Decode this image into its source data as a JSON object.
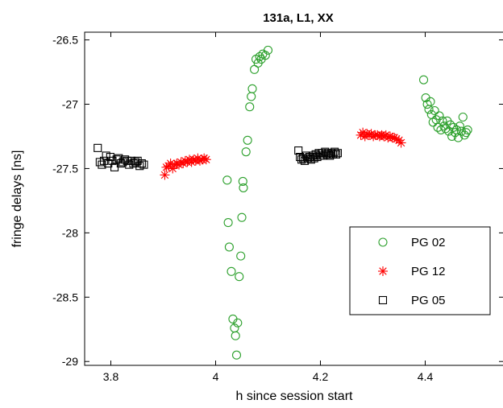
{
  "chart_data": {
    "type": "scatter",
    "title": "131a, L1, XX",
    "xlabel": "h since session start",
    "ylabel": "fringe delays [ns]",
    "xlim": [
      3.75,
      4.55
    ],
    "ylim": [
      -29.03,
      -26.44
    ],
    "xticks": [
      3.8,
      4,
      4.2,
      4.4
    ],
    "xtick_labels": [
      "3.8",
      "4",
      "4.2",
      "4.4"
    ],
    "yticks": [
      -26.5,
      -27,
      -27.5,
      -28,
      -28.5,
      -29
    ],
    "ytick_labels": [
      "-26.5",
      "-27",
      "-27.5",
      "-28",
      "-28.5",
      "-29"
    ],
    "grid": false,
    "legend_position": "lower-right",
    "series": [
      {
        "name": "PG 02",
        "marker": "circle",
        "color": "#2ca02c",
        "points": [
          [
            4.022,
            -27.59
          ],
          [
            4.024,
            -27.92
          ],
          [
            4.026,
            -28.11
          ],
          [
            4.03,
            -28.3
          ],
          [
            4.033,
            -28.67
          ],
          [
            4.036,
            -28.74
          ],
          [
            4.038,
            -28.8
          ],
          [
            4.04,
            -28.95
          ],
          [
            4.042,
            -28.7
          ],
          [
            4.045,
            -28.34
          ],
          [
            4.048,
            -28.18
          ],
          [
            4.05,
            -27.88
          ],
          [
            4.052,
            -27.6
          ],
          [
            4.053,
            -27.65
          ],
          [
            4.058,
            -27.37
          ],
          [
            4.061,
            -27.28
          ],
          [
            4.065,
            -27.02
          ],
          [
            4.068,
            -26.94
          ],
          [
            4.07,
            -26.88
          ],
          [
            4.074,
            -26.73
          ],
          [
            4.077,
            -26.65
          ],
          [
            4.081,
            -26.68
          ],
          [
            4.084,
            -26.63
          ],
          [
            4.087,
            -26.65
          ],
          [
            4.09,
            -26.61
          ],
          [
            4.095,
            -26.62
          ],
          [
            4.1,
            -26.58
          ],
          [
            4.397,
            -26.81
          ],
          [
            4.401,
            -26.95
          ],
          [
            4.404,
            -27.0
          ],
          [
            4.407,
            -27.04
          ],
          [
            4.41,
            -26.98
          ],
          [
            4.412,
            -27.08
          ],
          [
            4.415,
            -27.14
          ],
          [
            4.418,
            -27.05
          ],
          [
            4.421,
            -27.12
          ],
          [
            4.424,
            -27.18
          ],
          [
            4.427,
            -27.09
          ],
          [
            4.43,
            -27.2
          ],
          [
            4.433,
            -27.13
          ],
          [
            4.436,
            -27.17
          ],
          [
            4.439,
            -27.19
          ],
          [
            4.442,
            -27.13
          ],
          [
            4.445,
            -27.21
          ],
          [
            4.448,
            -27.16
          ],
          [
            4.451,
            -27.25
          ],
          [
            4.454,
            -27.18
          ],
          [
            4.457,
            -27.22
          ],
          [
            4.46,
            -27.2
          ],
          [
            4.463,
            -27.26
          ],
          [
            4.466,
            -27.17
          ],
          [
            4.469,
            -27.21
          ],
          [
            4.472,
            -27.1
          ],
          [
            4.475,
            -27.24
          ],
          [
            4.478,
            -27.22
          ],
          [
            4.481,
            -27.2
          ]
        ]
      },
      {
        "name": "PG 12",
        "marker": "asterisk",
        "color": "#ff0000",
        "points": [
          [
            3.903,
            -27.55
          ],
          [
            3.906,
            -27.49
          ],
          [
            3.91,
            -27.48
          ],
          [
            3.914,
            -27.46
          ],
          [
            3.918,
            -27.5
          ],
          [
            3.922,
            -27.47
          ],
          [
            3.926,
            -27.46
          ],
          [
            3.93,
            -27.47
          ],
          [
            3.934,
            -27.45
          ],
          [
            3.938,
            -27.46
          ],
          [
            3.942,
            -27.44
          ],
          [
            3.946,
            -27.45
          ],
          [
            3.95,
            -27.43
          ],
          [
            3.954,
            -27.45
          ],
          [
            3.958,
            -27.43
          ],
          [
            3.962,
            -27.44
          ],
          [
            3.966,
            -27.42
          ],
          [
            3.97,
            -27.44
          ],
          [
            3.974,
            -27.43
          ],
          [
            3.978,
            -27.42
          ],
          [
            3.982,
            -27.43
          ],
          [
            4.277,
            -27.24
          ],
          [
            4.281,
            -27.22
          ],
          [
            4.285,
            -27.25
          ],
          [
            4.289,
            -27.23
          ],
          [
            4.293,
            -27.24
          ],
          [
            4.297,
            -27.23
          ],
          [
            4.301,
            -27.25
          ],
          [
            4.305,
            -27.24
          ],
          [
            4.309,
            -27.24
          ],
          [
            4.313,
            -27.25
          ],
          [
            4.317,
            -27.24
          ],
          [
            4.321,
            -27.25
          ],
          [
            4.325,
            -27.24
          ],
          [
            4.329,
            -27.26
          ],
          [
            4.333,
            -27.25
          ],
          [
            4.337,
            -27.26
          ],
          [
            4.341,
            -27.26
          ],
          [
            4.345,
            -27.27
          ],
          [
            4.35,
            -27.28
          ],
          [
            4.354,
            -27.3
          ]
        ]
      },
      {
        "name": "PG 05",
        "marker": "square",
        "color": "#000000",
        "points": [
          [
            3.775,
            -27.34
          ],
          [
            3.779,
            -27.45
          ],
          [
            3.783,
            -27.47
          ],
          [
            3.787,
            -27.44
          ],
          [
            3.791,
            -27.4
          ],
          [
            3.795,
            -27.46
          ],
          [
            3.799,
            -27.41
          ],
          [
            3.803,
            -27.44
          ],
          [
            3.807,
            -27.49
          ],
          [
            3.811,
            -27.43
          ],
          [
            3.815,
            -27.42
          ],
          [
            3.819,
            -27.46
          ],
          [
            3.823,
            -27.45
          ],
          [
            3.827,
            -27.43
          ],
          [
            3.831,
            -27.44
          ],
          [
            3.835,
            -27.47
          ],
          [
            3.839,
            -27.44
          ],
          [
            3.843,
            -27.46
          ],
          [
            3.847,
            -27.45
          ],
          [
            3.851,
            -27.44
          ],
          [
            3.855,
            -27.48
          ],
          [
            3.859,
            -27.46
          ],
          [
            3.863,
            -27.47
          ],
          [
            4.158,
            -27.36
          ],
          [
            4.161,
            -27.41
          ],
          [
            4.164,
            -27.43
          ],
          [
            4.167,
            -27.42
          ],
          [
            4.17,
            -27.44
          ],
          [
            4.173,
            -27.4
          ],
          [
            4.176,
            -27.42
          ],
          [
            4.179,
            -27.41
          ],
          [
            4.182,
            -27.43
          ],
          [
            4.185,
            -27.4
          ],
          [
            4.188,
            -27.42
          ],
          [
            4.191,
            -27.39
          ],
          [
            4.194,
            -27.41
          ],
          [
            4.197,
            -27.38
          ],
          [
            4.2,
            -27.4
          ],
          [
            4.203,
            -27.38
          ],
          [
            4.206,
            -27.4
          ],
          [
            4.209,
            -27.37
          ],
          [
            4.212,
            -27.39
          ],
          [
            4.215,
            -27.38
          ],
          [
            4.218,
            -27.4
          ],
          [
            4.221,
            -27.38
          ],
          [
            4.224,
            -27.39
          ],
          [
            4.227,
            -27.37
          ],
          [
            4.23,
            -27.39
          ],
          [
            4.233,
            -27.38
          ]
        ]
      }
    ]
  }
}
